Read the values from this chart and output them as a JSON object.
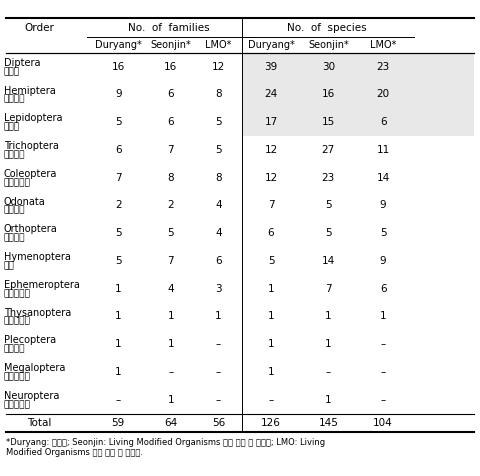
{
  "title_families": "No.  of  families",
  "title_species": "No.  of  species",
  "col_order": "Order",
  "subheaders": [
    "Duryang*",
    "Seonjin*",
    "LMO*",
    "Duryang*",
    "Seonjin*",
    "LMO*"
  ],
  "orders": [
    [
      "Diptera",
      "파리목"
    ],
    [
      "Hemiptera",
      "노린재목"
    ],
    [
      "Lepidoptera",
      "나비목"
    ],
    [
      "Trichoptera",
      "날도래목"
    ],
    [
      "Coleoptera",
      "딱정벌레목"
    ],
    [
      "Odonata",
      "잠자리목"
    ],
    [
      "Orthoptera",
      "메뚜기목"
    ],
    [
      "Hymenoptera",
      "벌목"
    ],
    [
      "Ephemeroptera",
      "하루살이목"
    ],
    [
      "Thysanoptera",
      "총채벌레목"
    ],
    [
      "Plecoptera",
      "강도래목"
    ],
    [
      "Megaloptera",
      "뱀잠자리목"
    ],
    [
      "Neuroptera",
      "풀잠자리목"
    ]
  ],
  "data": [
    [
      16,
      16,
      12,
      39,
      30,
      23
    ],
    [
      9,
      6,
      8,
      24,
      16,
      20
    ],
    [
      5,
      6,
      5,
      17,
      15,
      6
    ],
    [
      6,
      7,
      5,
      12,
      27,
      11
    ],
    [
      7,
      8,
      8,
      12,
      23,
      14
    ],
    [
      2,
      2,
      4,
      7,
      5,
      9
    ],
    [
      5,
      5,
      4,
      6,
      5,
      5
    ],
    [
      5,
      7,
      6,
      5,
      14,
      9
    ],
    [
      1,
      4,
      3,
      1,
      7,
      6
    ],
    [
      1,
      1,
      1,
      1,
      1,
      1
    ],
    [
      1,
      1,
      -1,
      1,
      1,
      -1
    ],
    [
      1,
      -1,
      -1,
      1,
      -1,
      -1
    ],
    [
      -1,
      1,
      -1,
      -1,
      1,
      -1
    ]
  ],
  "totals": [
    59,
    64,
    56,
    126,
    145,
    104
  ],
  "shaded_rows": [
    0,
    1,
    2
  ],
  "shade_color": "#e8e8e8",
  "footer": "*Duryang: 일반벼; Seonjin: Living Modified Organisms 격리 포장 내 일반벼; LMO: Living\nModified Organisms 격리 포장 내 변형벼.",
  "bg_color": "#ffffff"
}
